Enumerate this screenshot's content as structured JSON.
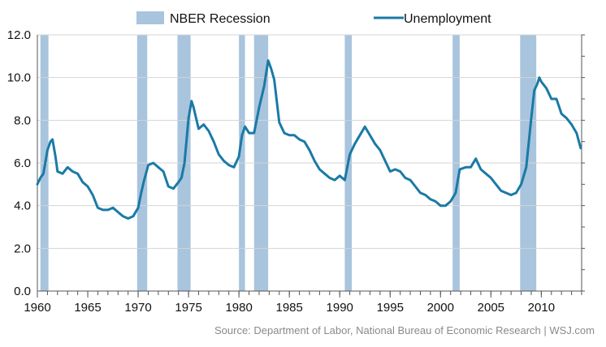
{
  "chart_data": {
    "type": "line",
    "title": "",
    "xlabel": "",
    "ylabel": "",
    "xlim": [
      1960,
      2014
    ],
    "ylim": [
      0,
      12
    ],
    "grid": true,
    "legend_position": "top",
    "x_ticks": [
      "1960",
      "1965",
      "1970",
      "1975",
      "1980",
      "1985",
      "1990",
      "1995",
      "2000",
      "2005",
      "2010"
    ],
    "y_ticks": [
      "0.0",
      "2.0",
      "4.0",
      "6.0",
      "8.0",
      "10.0",
      "12.0"
    ],
    "legend": [
      {
        "label": "NBER Recession",
        "color": "#a9c4dd"
      },
      {
        "label": "Unemployment",
        "color": "#1a7aa6"
      }
    ],
    "recessions": [
      [
        1960.3,
        1961.1
      ],
      [
        1969.9,
        1970.9
      ],
      [
        1973.9,
        1975.2
      ],
      [
        1980.0,
        1980.6
      ],
      [
        1981.5,
        1982.9
      ],
      [
        1990.5,
        1991.2
      ],
      [
        2001.2,
        2001.9
      ],
      [
        2007.9,
        2009.5
      ]
    ],
    "series": [
      {
        "name": "Unemployment",
        "color": "#1a7aa6",
        "x": [
          1960.0,
          1960.3,
          1960.6,
          1961.0,
          1961.3,
          1961.5,
          1961.8,
          1962.0,
          1962.5,
          1963.0,
          1963.5,
          1964.0,
          1964.5,
          1965.0,
          1965.5,
          1966.0,
          1966.5,
          1967.0,
          1967.5,
          1968.0,
          1968.5,
          1969.0,
          1969.5,
          1970.0,
          1970.3,
          1970.6,
          1971.0,
          1971.5,
          1972.0,
          1972.5,
          1973.0,
          1973.5,
          1974.0,
          1974.3,
          1974.6,
          1975.0,
          1975.3,
          1975.5,
          1975.8,
          1976.0,
          1976.5,
          1977.0,
          1977.5,
          1978.0,
          1978.5,
          1979.0,
          1979.5,
          1980.0,
          1980.3,
          1980.6,
          1981.0,
          1981.5,
          1982.0,
          1982.5,
          1982.9,
          1983.2,
          1983.5,
          1984.0,
          1984.5,
          1985.0,
          1985.5,
          1986.0,
          1986.5,
          1987.0,
          1987.5,
          1988.0,
          1988.5,
          1989.0,
          1989.5,
          1990.0,
          1990.5,
          1991.0,
          1991.5,
          1992.0,
          1992.5,
          1993.0,
          1993.5,
          1994.0,
          1994.5,
          1995.0,
          1995.5,
          1996.0,
          1996.5,
          1997.0,
          1997.5,
          1998.0,
          1998.5,
          1999.0,
          1999.5,
          2000.0,
          2000.5,
          2001.0,
          2001.5,
          2001.9,
          2002.5,
          2003.0,
          2003.5,
          2004.0,
          2004.5,
          2005.0,
          2005.5,
          2006.0,
          2006.5,
          2007.0,
          2007.5,
          2008.0,
          2008.5,
          2009.0,
          2009.3,
          2009.6,
          2009.8,
          2010.0,
          2010.5,
          2011.0,
          2011.5,
          2012.0,
          2012.5,
          2013.0,
          2013.5,
          2013.9
        ],
        "values": [
          5.0,
          5.3,
          5.5,
          6.6,
          7.0,
          7.1,
          6.3,
          5.6,
          5.5,
          5.8,
          5.6,
          5.5,
          5.1,
          4.9,
          4.5,
          3.9,
          3.8,
          3.8,
          3.9,
          3.7,
          3.5,
          3.4,
          3.5,
          3.9,
          4.6,
          5.2,
          5.9,
          6.0,
          5.8,
          5.6,
          4.9,
          4.8,
          5.1,
          5.3,
          6.0,
          8.1,
          8.9,
          8.6,
          8.0,
          7.6,
          7.8,
          7.5,
          7.0,
          6.4,
          6.1,
          5.9,
          5.8,
          6.3,
          7.3,
          7.7,
          7.4,
          7.4,
          8.6,
          9.6,
          10.8,
          10.4,
          9.9,
          7.9,
          7.4,
          7.3,
          7.3,
          7.1,
          7.0,
          6.6,
          6.1,
          5.7,
          5.5,
          5.3,
          5.2,
          5.4,
          5.2,
          6.4,
          6.9,
          7.3,
          7.7,
          7.3,
          6.9,
          6.6,
          6.1,
          5.6,
          5.7,
          5.6,
          5.3,
          5.2,
          4.9,
          4.6,
          4.5,
          4.3,
          4.2,
          4.0,
          4.0,
          4.2,
          4.6,
          5.7,
          5.8,
          5.8,
          6.2,
          5.7,
          5.5,
          5.3,
          5.0,
          4.7,
          4.6,
          4.5,
          4.6,
          5.0,
          5.8,
          8.1,
          9.4,
          9.7,
          10.0,
          9.8,
          9.5,
          9.0,
          9.0,
          8.3,
          8.1,
          7.8,
          7.4,
          6.7
        ]
      }
    ]
  },
  "source": "Source: Department of Labor, National Bureau of Economic Research  |  WSJ.com"
}
